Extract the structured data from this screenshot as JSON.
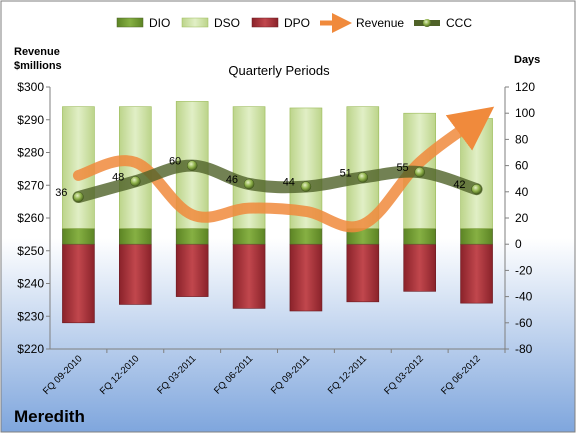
{
  "chart_data": {
    "type": "bar",
    "title": "Quarterly Periods",
    "company": "Meredith",
    "left_axis_label": "Revenue\n$millions",
    "right_axis_label": "Days",
    "left_axis": {
      "min": 220,
      "max": 300,
      "step": 10,
      "tick_labels": [
        "$220",
        "$230",
        "$240",
        "$250",
        "$260",
        "$270",
        "$280",
        "$290",
        "$300"
      ]
    },
    "right_axis": {
      "min": -80,
      "max": 120,
      "step": 20,
      "tick_labels": [
        "-80",
        "-60",
        "-40",
        "-20",
        "0",
        "20",
        "40",
        "60",
        "80",
        "100",
        "120"
      ]
    },
    "categories": [
      "FQ 09-2010",
      "FQ 12-2010",
      "FQ 03-2011",
      "FQ 06-2011",
      "FQ 09-2011",
      "FQ 12-2011",
      "FQ 03-2012",
      "FQ 06-2012"
    ],
    "legend": {
      "position": "top",
      "items": [
        {
          "name": "DIO",
          "kind": "bar"
        },
        {
          "name": "DSO",
          "kind": "bar"
        },
        {
          "name": "DPO",
          "kind": "bar"
        },
        {
          "name": "Revenue",
          "kind": "arrow"
        },
        {
          "name": "CCC",
          "kind": "line-marker"
        }
      ]
    },
    "series": [
      {
        "name": "DIO",
        "axis": "right",
        "stack": "positive",
        "values": [
          12,
          12,
          12,
          12,
          12,
          12,
          12,
          12
        ]
      },
      {
        "name": "DSO",
        "axis": "right",
        "stack": "positive",
        "values": [
          93,
          93,
          97,
          93,
          92,
          93,
          88,
          84
        ]
      },
      {
        "name": "DPO",
        "axis": "right",
        "stack": "negative",
        "values": [
          -60,
          -46,
          -40,
          -49,
          -51,
          -44,
          -36,
          -45
        ]
      },
      {
        "name": "Revenue",
        "axis": "left",
        "values": [
          273,
          277,
          261,
          263,
          262,
          258,
          277,
          290
        ]
      },
      {
        "name": "CCC",
        "axis": "right",
        "values": [
          36,
          48,
          60,
          46,
          44,
          51,
          55,
          42
        ],
        "labels": [
          "36",
          "48",
          "60",
          "46",
          "44",
          "51",
          "55",
          "42"
        ]
      }
    ],
    "colors": {
      "DIO": "#6f9a2e",
      "DSO": "#cfe3a6",
      "DPO": "#9e2d33",
      "Revenue": "#f08a3c",
      "CCC": "#4f6228",
      "background_top": "#ffffff",
      "background_bottom": "#7fa6dd"
    },
    "grid": false
  }
}
